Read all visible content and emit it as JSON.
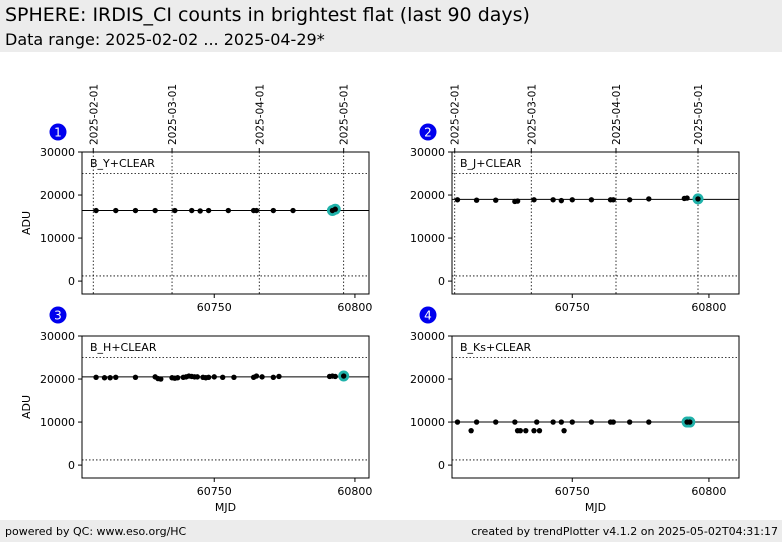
{
  "header": {
    "title": "SPHERE: IRDIS_CI counts in brightest flat (last 90 days)",
    "subtitle": "Data range: 2025-02-02 ... 2025-04-29*"
  },
  "footer": {
    "left": "powered by QC: www.eso.org/HC",
    "right": "created by trendPlotter v4.1.2 on 2025-05-02T04:31:17"
  },
  "colors": {
    "header_bg": "#ececec",
    "marker": "#000000",
    "highlight": "#20b2aa",
    "badge": "#0000ee",
    "badge_text": "#ffffff"
  },
  "chart_data": [
    {
      "type": "scatter",
      "panel": "1",
      "label": "B_Y+CLEAR",
      "ylabel": "ADU",
      "xlabel": "",
      "xlim": [
        60703,
        60805
      ],
      "ylim": [
        -3000,
        30000
      ],
      "yticks": [
        0,
        10000,
        20000,
        30000
      ],
      "xticks": [
        60750,
        60800
      ],
      "date_ticks": [
        {
          "mjd": 60707,
          "label": "2025-02-01"
        },
        {
          "mjd": 60735,
          "label": "2025-03-01"
        },
        {
          "mjd": 60766,
          "label": "2025-04-01"
        },
        {
          "mjd": 60796,
          "label": "2025-05-01"
        }
      ],
      "hlines": [
        16400,
        25000,
        1200
      ],
      "x": [
        60708,
        60715,
        60722,
        60729,
        60736,
        60742,
        60745,
        60748,
        60755,
        60764,
        60765,
        60771,
        60778,
        60792,
        60793
      ],
      "y": [
        16400,
        16400,
        16400,
        16400,
        16400,
        16400,
        16300,
        16400,
        16400,
        16400,
        16400,
        16400,
        16400,
        16400,
        16700
      ],
      "highlight": [
        {
          "x": 60792,
          "y": 16400
        },
        {
          "x": 60793,
          "y": 16700
        }
      ]
    },
    {
      "type": "scatter",
      "panel": "2",
      "label": "B_J+CLEAR",
      "ylabel": "",
      "xlabel": "",
      "xlim": [
        60706,
        60811
      ],
      "ylim": [
        -3000,
        30000
      ],
      "yticks": [
        0,
        10000,
        20000,
        30000
      ],
      "xticks": [
        60750,
        60800
      ],
      "date_ticks": [
        {
          "mjd": 60707,
          "label": "2025-02-01"
        },
        {
          "mjd": 60735,
          "label": "2025-03-01"
        },
        {
          "mjd": 60766,
          "label": "2025-04-01"
        },
        {
          "mjd": 60796,
          "label": "2025-05-01"
        }
      ],
      "hlines": [
        19000,
        25000,
        1200
      ],
      "x": [
        60708,
        60715,
        60722,
        60729,
        60730,
        60736,
        60743,
        60746,
        60750,
        60757,
        60764,
        60765,
        60771,
        60778,
        60791,
        60792,
        60796
      ],
      "y": [
        18900,
        18800,
        18800,
        18500,
        18600,
        18900,
        18900,
        18700,
        18900,
        18900,
        18900,
        18900,
        18900,
        19100,
        19200,
        19300,
        19100
      ],
      "highlight": [
        {
          "x": 60796,
          "y": 19100
        }
      ]
    },
    {
      "type": "scatter",
      "panel": "3",
      "label": "B_H+CLEAR",
      "ylabel": "ADU",
      "xlabel": "MJD",
      "xlim": [
        60703,
        60805
      ],
      "ylim": [
        -3000,
        30000
      ],
      "yticks": [
        0,
        10000,
        20000,
        30000
      ],
      "xticks": [
        60750,
        60800
      ],
      "date_ticks": [],
      "hlines": [
        20500,
        25000,
        1200
      ],
      "x": [
        60708,
        60711,
        60713,
        60715,
        60722,
        60729,
        60730,
        60731,
        60735,
        60736,
        60737,
        60739,
        60740,
        60741,
        60742,
        60743,
        60744,
        60746,
        60747,
        60748,
        60750,
        60753,
        60757,
        60764,
        60765,
        60767,
        60771,
        60773,
        60791,
        60792,
        60793,
        60796
      ],
      "y": [
        20400,
        20300,
        20300,
        20400,
        20400,
        20500,
        20100,
        20000,
        20300,
        20200,
        20300,
        20400,
        20500,
        20700,
        20600,
        20500,
        20500,
        20400,
        20300,
        20400,
        20500,
        20400,
        20400,
        20400,
        20700,
        20500,
        20400,
        20600,
        20600,
        20700,
        20600,
        20700
      ],
      "highlight": [
        {
          "x": 60796,
          "y": 20700
        }
      ]
    },
    {
      "type": "scatter",
      "panel": "4",
      "label": "B_Ks+CLEAR",
      "ylabel": "",
      "xlabel": "MJD",
      "xlim": [
        60706,
        60811
      ],
      "ylim": [
        -3000,
        30000
      ],
      "yticks": [
        0,
        10000,
        20000,
        30000
      ],
      "xticks": [
        60750,
        60800
      ],
      "date_ticks": [],
      "hlines": [
        10000,
        25000,
        1200
      ],
      "x": [
        60708,
        60713,
        60715,
        60722,
        60729,
        60730,
        60731,
        60733,
        60736,
        60737,
        60738,
        60743,
        60746,
        60747,
        60750,
        60757,
        60764,
        60765,
        60771,
        60778,
        60792,
        60793
      ],
      "y": [
        10000,
        8000,
        10000,
        10000,
        10000,
        8000,
        8000,
        8000,
        8000,
        10000,
        8000,
        10000,
        10000,
        8000,
        10000,
        10000,
        10000,
        10000,
        10000,
        10000,
        10000,
        10000
      ],
      "highlight": [
        {
          "x": 60792,
          "y": 10000
        },
        {
          "x": 60793,
          "y": 10000
        }
      ]
    }
  ]
}
